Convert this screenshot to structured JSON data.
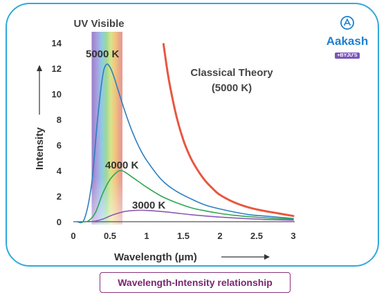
{
  "caption": "Wavelength-Intensity relationship",
  "logo": {
    "brand": "Aakash",
    "sub": "+BYJU'S"
  },
  "colors": {
    "border": "#2fa8de",
    "curve_5000": "#2a7fc0",
    "curve_4000": "#2fa552",
    "curve_3000": "#8a5bb0",
    "classical": "#e8573f",
    "caption": "#7a2570"
  },
  "chart_data": {
    "type": "line",
    "xlabel": "Wavelength (µm)",
    "ylabel": "Intensity",
    "xlim": [
      0,
      3
    ],
    "ylim": [
      0,
      14
    ],
    "x_ticks": [
      "0",
      "0.5",
      "1",
      "1.5",
      "2",
      "2.5",
      "3"
    ],
    "y_ticks": [
      "0",
      "2",
      "4",
      "6",
      "8",
      "10",
      "12",
      "14"
    ],
    "band_label": "UV Visible",
    "band_range": [
      0.25,
      0.67
    ],
    "series": [
      {
        "name": "5000 K",
        "points": [
          [
            0.05,
            0
          ],
          [
            0.15,
            0.2
          ],
          [
            0.25,
            3.0
          ],
          [
            0.33,
            8.0
          ],
          [
            0.4,
            11.4
          ],
          [
            0.45,
            12.3
          ],
          [
            0.5,
            12.1
          ],
          [
            0.55,
            11.4
          ],
          [
            0.6,
            10.5
          ],
          [
            0.7,
            8.7
          ],
          [
            0.8,
            7.1
          ],
          [
            0.9,
            5.8
          ],
          [
            1.0,
            4.8
          ],
          [
            1.2,
            3.3
          ],
          [
            1.4,
            2.4
          ],
          [
            1.6,
            1.8
          ],
          [
            1.8,
            1.3
          ],
          [
            2.0,
            1.0
          ],
          [
            2.2,
            0.75
          ],
          [
            2.4,
            0.55
          ],
          [
            2.6,
            0.45
          ],
          [
            2.8,
            0.35
          ],
          [
            3.0,
            0.25
          ]
        ]
      },
      {
        "name": "4000 K",
        "points": [
          [
            0.1,
            0
          ],
          [
            0.2,
            0.05
          ],
          [
            0.3,
            0.7
          ],
          [
            0.4,
            2.2
          ],
          [
            0.5,
            3.3
          ],
          [
            0.6,
            3.9
          ],
          [
            0.65,
            4.0
          ],
          [
            0.7,
            3.9
          ],
          [
            0.8,
            3.5
          ],
          [
            0.9,
            3.1
          ],
          [
            1.0,
            2.7
          ],
          [
            1.2,
            2.0
          ],
          [
            1.4,
            1.5
          ],
          [
            1.6,
            1.1
          ],
          [
            1.8,
            0.85
          ],
          [
            2.0,
            0.65
          ],
          [
            2.2,
            0.5
          ],
          [
            2.5,
            0.35
          ],
          [
            2.8,
            0.25
          ],
          [
            3.0,
            0.2
          ]
        ]
      },
      {
        "name": "3000 K",
        "points": [
          [
            0.2,
            0
          ],
          [
            0.3,
            0.05
          ],
          [
            0.4,
            0.2
          ],
          [
            0.5,
            0.45
          ],
          [
            0.6,
            0.65
          ],
          [
            0.7,
            0.8
          ],
          [
            0.8,
            0.87
          ],
          [
            0.9,
            0.9
          ],
          [
            1.0,
            0.88
          ],
          [
            1.2,
            0.8
          ],
          [
            1.4,
            0.68
          ],
          [
            1.6,
            0.55
          ],
          [
            1.8,
            0.45
          ],
          [
            2.0,
            0.36
          ],
          [
            2.3,
            0.26
          ],
          [
            2.6,
            0.18
          ],
          [
            3.0,
            0.12
          ]
        ]
      },
      {
        "name": "Classical Theory\n(5000 K)",
        "points": [
          [
            1.23,
            13.9
          ],
          [
            1.3,
            11.2
          ],
          [
            1.4,
            8.4
          ],
          [
            1.5,
            6.4
          ],
          [
            1.6,
            5.0
          ],
          [
            1.7,
            4.0
          ],
          [
            1.8,
            3.2
          ],
          [
            1.9,
            2.6
          ],
          [
            2.0,
            2.1
          ],
          [
            2.2,
            1.5
          ],
          [
            2.4,
            1.1
          ],
          [
            2.6,
            0.85
          ],
          [
            2.8,
            0.65
          ],
          [
            3.0,
            0.45
          ]
        ]
      }
    ]
  }
}
